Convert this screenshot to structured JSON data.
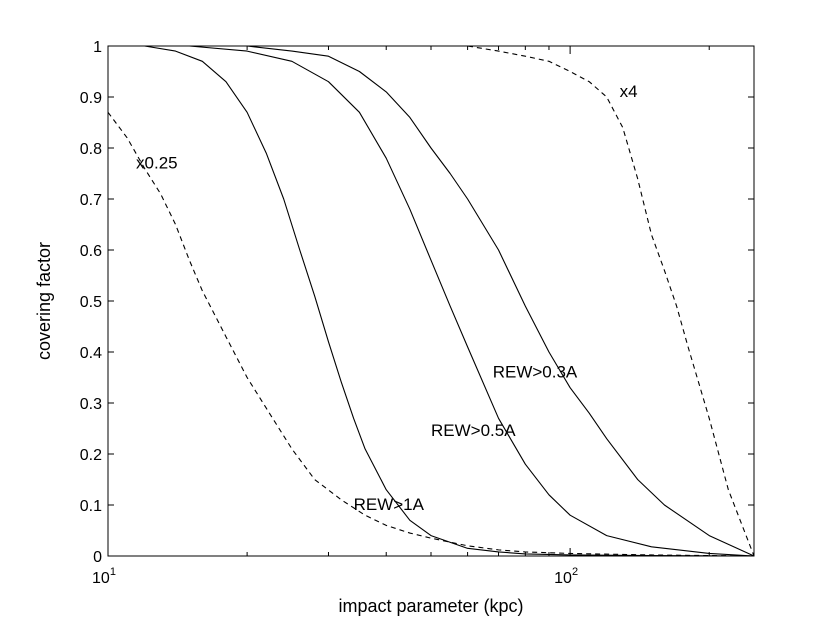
{
  "chart_data": {
    "type": "line",
    "title": "",
    "xlabel": "impact parameter (kpc)",
    "ylabel": "covering factor",
    "xscale": "log",
    "xlim": [
      10,
      250
    ],
    "ylim": [
      0,
      1
    ],
    "x_ticks": [
      {
        "value": 10,
        "base": "10",
        "exp": "1"
      },
      {
        "value": 100,
        "base": "10",
        "exp": "2"
      }
    ],
    "y_ticks": [
      "0",
      "0.1",
      "0.2",
      "0.3",
      "0.4",
      "0.5",
      "0.6",
      "0.7",
      "0.8",
      "0.9",
      "1"
    ],
    "grid": false,
    "series": [
      {
        "name": "",
        "style": "dashed",
        "color": "#000000",
        "x": [
          10,
          11,
          12,
          13,
          14,
          15,
          16,
          18,
          20,
          22,
          25,
          28,
          32,
          36,
          40,
          45,
          50,
          60,
          70,
          80,
          100,
          150,
          250
        ],
        "y": [
          0.87,
          0.82,
          0.76,
          0.71,
          0.65,
          0.58,
          0.52,
          0.43,
          0.35,
          0.29,
          0.21,
          0.15,
          0.11,
          0.08,
          0.06,
          0.045,
          0.035,
          0.02,
          0.012,
          0.008,
          0.005,
          0.002,
          0.0
        ]
      },
      {
        "name": "",
        "style": "solid",
        "color": "#000000",
        "x": [
          10,
          12,
          14,
          16,
          18,
          20,
          22,
          24,
          26,
          28,
          30,
          32,
          34,
          36,
          40,
          45,
          50,
          60,
          70,
          80,
          100,
          150,
          250
        ],
        "y": [
          1.0,
          1.0,
          0.99,
          0.97,
          0.93,
          0.87,
          0.79,
          0.7,
          0.6,
          0.51,
          0.42,
          0.34,
          0.27,
          0.21,
          0.13,
          0.07,
          0.04,
          0.015,
          0.008,
          0.004,
          0.002,
          0.001,
          0.0
        ]
      },
      {
        "name": "",
        "style": "solid",
        "color": "#000000",
        "x": [
          10,
          15,
          20,
          25,
          30,
          35,
          40,
          45,
          50,
          55,
          60,
          70,
          80,
          90,
          100,
          120,
          150,
          200,
          250
        ],
        "y": [
          1.0,
          1.0,
          0.99,
          0.97,
          0.93,
          0.87,
          0.78,
          0.68,
          0.58,
          0.49,
          0.41,
          0.27,
          0.18,
          0.12,
          0.08,
          0.04,
          0.018,
          0.005,
          0.0
        ]
      },
      {
        "name": "",
        "style": "solid",
        "color": "#000000",
        "x": [
          10,
          15,
          20,
          25,
          30,
          35,
          40,
          45,
          50,
          55,
          60,
          70,
          80,
          90,
          100,
          110,
          120,
          140,
          160,
          200,
          250
        ],
        "y": [
          1.0,
          1.0,
          1.0,
          0.99,
          0.98,
          0.95,
          0.91,
          0.86,
          0.8,
          0.75,
          0.7,
          0.6,
          0.49,
          0.4,
          0.33,
          0.28,
          0.23,
          0.15,
          0.1,
          0.04,
          0.0
        ]
      },
      {
        "name": "",
        "style": "dashed",
        "color": "#000000",
        "x": [
          10,
          20,
          40,
          60,
          70,
          80,
          90,
          100,
          110,
          120,
          130,
          140,
          150,
          160,
          170,
          180,
          200,
          220,
          250
        ],
        "y": [
          1.0,
          1.0,
          1.0,
          1.0,
          0.99,
          0.98,
          0.97,
          0.95,
          0.93,
          0.9,
          0.84,
          0.74,
          0.63,
          0.56,
          0.49,
          0.41,
          0.27,
          0.13,
          0.0
        ]
      }
    ],
    "annotations": [
      {
        "text": "x0.25",
        "x": 11.5,
        "y": 0.76
      },
      {
        "text": "x4",
        "x": 128,
        "y": 0.9
      },
      {
        "text": "REW>0.3A",
        "x": 68,
        "y": 0.35
      },
      {
        "text": "REW>0.5A",
        "x": 50,
        "y": 0.235
      },
      {
        "text": "REW>1A",
        "x": 34,
        "y": 0.09
      }
    ]
  }
}
